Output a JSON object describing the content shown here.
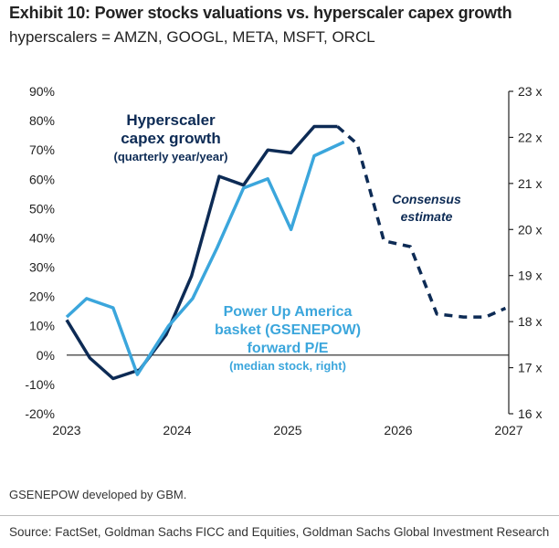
{
  "header": {
    "title": "Exhibit 10: Power stocks valuations vs. hyperscaler capex growth",
    "subtitle": "hyperscalers = AMZN, GOOGL, META, MSFT, ORCL"
  },
  "footer": {
    "note": "GSENEPOW developed by GBM.",
    "source": "Source: FactSet, Goldman Sachs FICC and Equities, Goldman Sachs Global Investment Research"
  },
  "colors": {
    "dark_navy": "#0d2b55",
    "light_blue": "#3ba6dc",
    "axis": "#222222"
  },
  "chart_data": {
    "type": "line",
    "x_ticks": [
      "2023",
      "2024",
      "2025",
      "2026",
      "2027"
    ],
    "xlim": [
      2023,
      2027
    ],
    "y_left": {
      "lim": [
        -20,
        90
      ],
      "ticks": [
        "-20%",
        "-10%",
        "0%",
        "10%",
        "20%",
        "30%",
        "40%",
        "50%",
        "60%",
        "70%",
        "80%",
        "90%"
      ],
      "tick_values": [
        -20,
        -10,
        0,
        10,
        20,
        30,
        40,
        50,
        60,
        70,
        80,
        90
      ]
    },
    "y_right": {
      "lim": [
        16,
        23
      ],
      "ticks": [
        "16 x",
        "17 x",
        "18 x",
        "19 x",
        "20 x",
        "21 x",
        "22 x",
        "23 x"
      ],
      "tick_values": [
        16,
        17,
        18,
        19,
        20,
        21,
        22,
        23
      ]
    },
    "annotations": {
      "capex_label": [
        "Hyperscaler",
        "capex growth",
        "(quarterly year/year)"
      ],
      "consensus_label": [
        "Consensus",
        "estimate"
      ],
      "basket_label": [
        "Power Up America",
        "basket (GSENEPOW)",
        "forward P/E",
        "(median stock, right)"
      ]
    },
    "series": [
      {
        "axis": "left",
        "style": "solid",
        "color": "#0d2b55",
        "x": [
          2023.0,
          2023.21,
          2023.42,
          2023.66,
          2023.9,
          2024.13,
          2024.38,
          2024.6,
          2024.82,
          2025.03,
          2025.24,
          2025.45
        ],
        "y": [
          12,
          -1,
          -8,
          -5,
          7,
          27,
          61,
          58,
          70,
          69,
          78,
          78
        ]
      },
      {
        "axis": "left",
        "style": "dashed",
        "color": "#0d2b55",
        "x": [
          2025.45,
          2025.63,
          2025.87,
          2026.11,
          2026.35,
          2026.59,
          2026.79,
          2026.97
        ],
        "y": [
          78,
          72,
          39,
          37,
          14,
          13,
          13,
          16
        ]
      },
      {
        "axis": "right",
        "style": "solid",
        "color": "#3ba6dc",
        "x": [
          2023.0,
          2023.18,
          2023.42,
          2023.64,
          2023.92,
          2024.14,
          2024.36,
          2024.6,
          2024.82,
          2025.03,
          2025.24,
          2025.51
        ],
        "y": [
          18.1,
          18.5,
          18.3,
          16.85,
          17.9,
          18.5,
          19.6,
          20.9,
          21.1,
          20.0,
          21.6,
          21.9
        ]
      }
    ]
  }
}
